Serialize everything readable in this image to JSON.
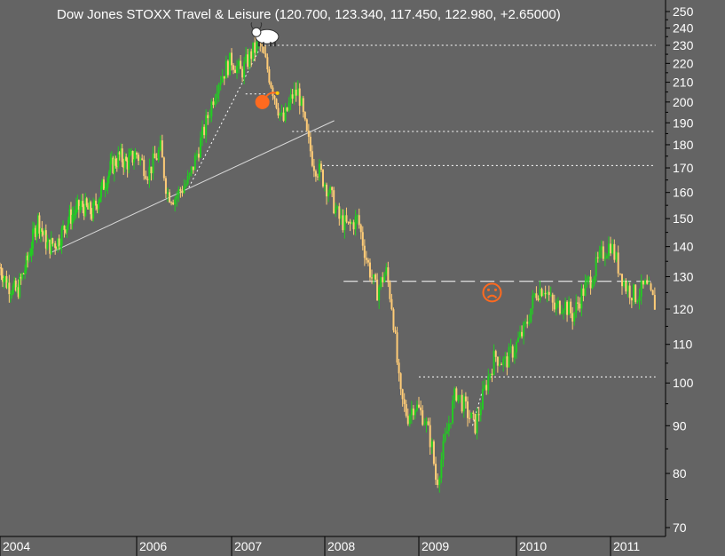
{
  "chart_data": {
    "type": "candlestick",
    "title": "Dow Jones STOXX Travel & Leisure (120.700, 123.340, 117.450, 122.980, +2.65000)",
    "y_scale": "log",
    "ylim": [
      70,
      255
    ],
    "y_ticks": [
      250,
      240,
      230,
      220,
      210,
      200,
      190,
      180,
      170,
      160,
      150,
      140,
      130,
      120,
      110,
      100,
      90,
      80,
      70
    ],
    "x_ticks": [
      "2004",
      "2006",
      "2007",
      "2008",
      "2009",
      "2010",
      "2011"
    ],
    "x_tick_dates": [
      "2004.00",
      "2006.00",
      "2007.00",
      "2008.00",
      "2009.00",
      "2010.00",
      "2011.00"
    ],
    "xlim": [
      "2004.00",
      "2011.45"
    ],
    "up_color": "#22cc22",
    "down_color": "#ffcc77",
    "grid": false,
    "price_path": [
      [
        "2004.00",
        133
      ],
      [
        "2004.10",
        128
      ],
      [
        "2004.25",
        125
      ],
      [
        "2004.40",
        135
      ],
      [
        "2004.55",
        150
      ],
      [
        "2004.70",
        140
      ],
      [
        "2004.85",
        142
      ],
      [
        "2005.00",
        150
      ],
      [
        "2005.20",
        155
      ],
      [
        "2005.35",
        152
      ],
      [
        "2005.50",
        162
      ],
      [
        "2005.62",
        170
      ],
      [
        "2005.75",
        175
      ],
      [
        "2005.85",
        172
      ],
      [
        "2006.00",
        176
      ],
      [
        "2006.12",
        168
      ],
      [
        "2006.25",
        178
      ],
      [
        "2006.32",
        160
      ],
      [
        "2006.40",
        158
      ],
      [
        "2006.55",
        165
      ],
      [
        "2006.70",
        185
      ],
      [
        "2006.85",
        210
      ],
      [
        "2007.00",
        222
      ],
      [
        "2007.10",
        215
      ],
      [
        "2007.22",
        226
      ],
      [
        "2007.30",
        231
      ],
      [
        "2007.38",
        218
      ],
      [
        "2007.45",
        205
      ],
      [
        "2007.55",
        190
      ],
      [
        "2007.65",
        203
      ],
      [
        "2007.72",
        205
      ],
      [
        "2007.80",
        185
      ],
      [
        "2007.88",
        172
      ],
      [
        "2007.95",
        168
      ],
      [
        "2008.05",
        160
      ],
      [
        "2008.15",
        150
      ],
      [
        "2008.25",
        147
      ],
      [
        "2008.35",
        150
      ],
      [
        "2008.45",
        135
      ],
      [
        "2008.55",
        125
      ],
      [
        "2008.65",
        132
      ],
      [
        "2008.72",
        120
      ],
      [
        "2008.80",
        97
      ],
      [
        "2008.88",
        92
      ],
      [
        "2008.95",
        95
      ],
      [
        "2009.05",
        92
      ],
      [
        "2009.13",
        86
      ],
      [
        "2009.18",
        78
      ],
      [
        "2009.28",
        88
      ],
      [
        "2009.38",
        98
      ],
      [
        "2009.45",
        95
      ],
      [
        "2009.52",
        92
      ],
      [
        "2009.58",
        90
      ],
      [
        "2009.68",
        99
      ],
      [
        "2009.78",
        107
      ],
      [
        "2009.88",
        105
      ],
      [
        "2010.00",
        110
      ],
      [
        "2010.10",
        115
      ],
      [
        "2010.20",
        125
      ],
      [
        "2010.30",
        127
      ],
      [
        "2010.40",
        120
      ],
      [
        "2010.50",
        122
      ],
      [
        "2010.60",
        118
      ],
      [
        "2010.70",
        125
      ],
      [
        "2010.80",
        130
      ],
      [
        "2010.90",
        137
      ],
      [
        "2011.00",
        141
      ],
      [
        "2011.08",
        133
      ],
      [
        "2011.15",
        127
      ],
      [
        "2011.25",
        124
      ],
      [
        "2011.35",
        127
      ],
      [
        "2011.45",
        121
      ]
    ],
    "annotations": {
      "horizontal_lines": [
        {
          "value": 230,
          "from": "2007.35",
          "to": "2011.45",
          "style": "dotted"
        },
        {
          "value": 186,
          "from": "2007.65",
          "to": "2011.45",
          "style": "dotted"
        },
        {
          "value": 171,
          "from": "2007.98",
          "to": "2011.45",
          "style": "dotted"
        },
        {
          "value": 128.5,
          "from": "2008.20",
          "to": "2011.45",
          "style": "dashed"
        },
        {
          "value": 101.5,
          "from": "2009.00",
          "to": "2011.45",
          "style": "dotted"
        },
        {
          "value": 204,
          "from": "2007.15",
          "to": "2007.45",
          "style": "dotted"
        }
      ],
      "trend_lines": [
        {
          "from": [
            "2004.75",
            138
          ],
          "to": [
            "2008.10",
            191
          ],
          "style": "solid"
        },
        {
          "from": [
            "2006.55",
            162
          ],
          "to": [
            "2007.30",
            228
          ],
          "style": "dotted"
        },
        {
          "from": [
            "2009.55",
            90
          ],
          "to": [
            "2009.65",
            98
          ],
          "style": "dotted"
        }
      ],
      "icons": [
        {
          "name": "bull-icon",
          "date": "2007.38",
          "value": 236
        },
        {
          "name": "bomb-icon",
          "date": "2007.33",
          "value": 200
        },
        {
          "name": "sad-face-icon",
          "date": "2009.75",
          "value": 125
        }
      ]
    }
  }
}
